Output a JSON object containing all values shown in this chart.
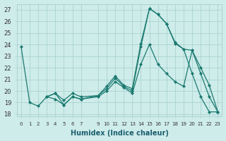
{
  "xlabel": "Humidex (Indice chaleur)",
  "xlim": [
    -0.5,
    23.5
  ],
  "ylim": [
    17.8,
    27.5
  ],
  "yticks": [
    18,
    19,
    20,
    21,
    22,
    23,
    24,
    25,
    26,
    27
  ],
  "xticks": [
    0,
    1,
    2,
    3,
    4,
    5,
    6,
    7,
    9,
    10,
    11,
    12,
    13,
    14,
    15,
    16,
    17,
    18,
    19,
    20,
    21,
    22,
    23
  ],
  "line_color": "#1b7a70",
  "bg_color": "#ceecea",
  "grid_color": "#aad4d0",
  "series": [
    {
      "x": [
        0,
        1,
        2,
        3,
        4,
        5,
        6,
        7,
        9,
        10,
        11,
        12,
        13,
        14,
        15,
        16,
        17,
        18,
        19,
        20,
        21,
        22,
        23
      ],
      "y": [
        23.8,
        19.0,
        18.7,
        19.5,
        19.8,
        18.8,
        19.5,
        19.3,
        19.6,
        20.2,
        21.1,
        20.4,
        20.0,
        23.8,
        27.1,
        26.6,
        25.8,
        24.1,
        23.6,
        21.5,
        19.5,
        18.2,
        18.2
      ]
    },
    {
      "x": [
        3,
        4,
        5,
        6,
        7,
        9,
        10,
        11,
        12,
        13,
        14,
        15,
        16,
        17,
        18,
        19,
        20,
        21,
        22,
        23
      ],
      "y": [
        19.5,
        19.8,
        19.2,
        19.8,
        19.5,
        19.6,
        20.4,
        21.3,
        20.5,
        20.2,
        24.1,
        27.1,
        26.6,
        25.8,
        24.2,
        23.6,
        23.5,
        21.5,
        19.5,
        18.2
      ]
    },
    {
      "x": [
        3,
        4,
        5,
        6,
        7,
        9,
        10,
        11,
        12,
        13,
        14,
        15,
        16,
        17,
        18,
        19,
        20,
        21,
        22,
        23
      ],
      "y": [
        19.5,
        19.3,
        18.8,
        19.5,
        19.3,
        19.5,
        20.0,
        20.8,
        20.3,
        19.8,
        22.3,
        24.0,
        22.3,
        21.5,
        20.8,
        20.4,
        23.5,
        22.0,
        20.5,
        18.2
      ]
    }
  ]
}
